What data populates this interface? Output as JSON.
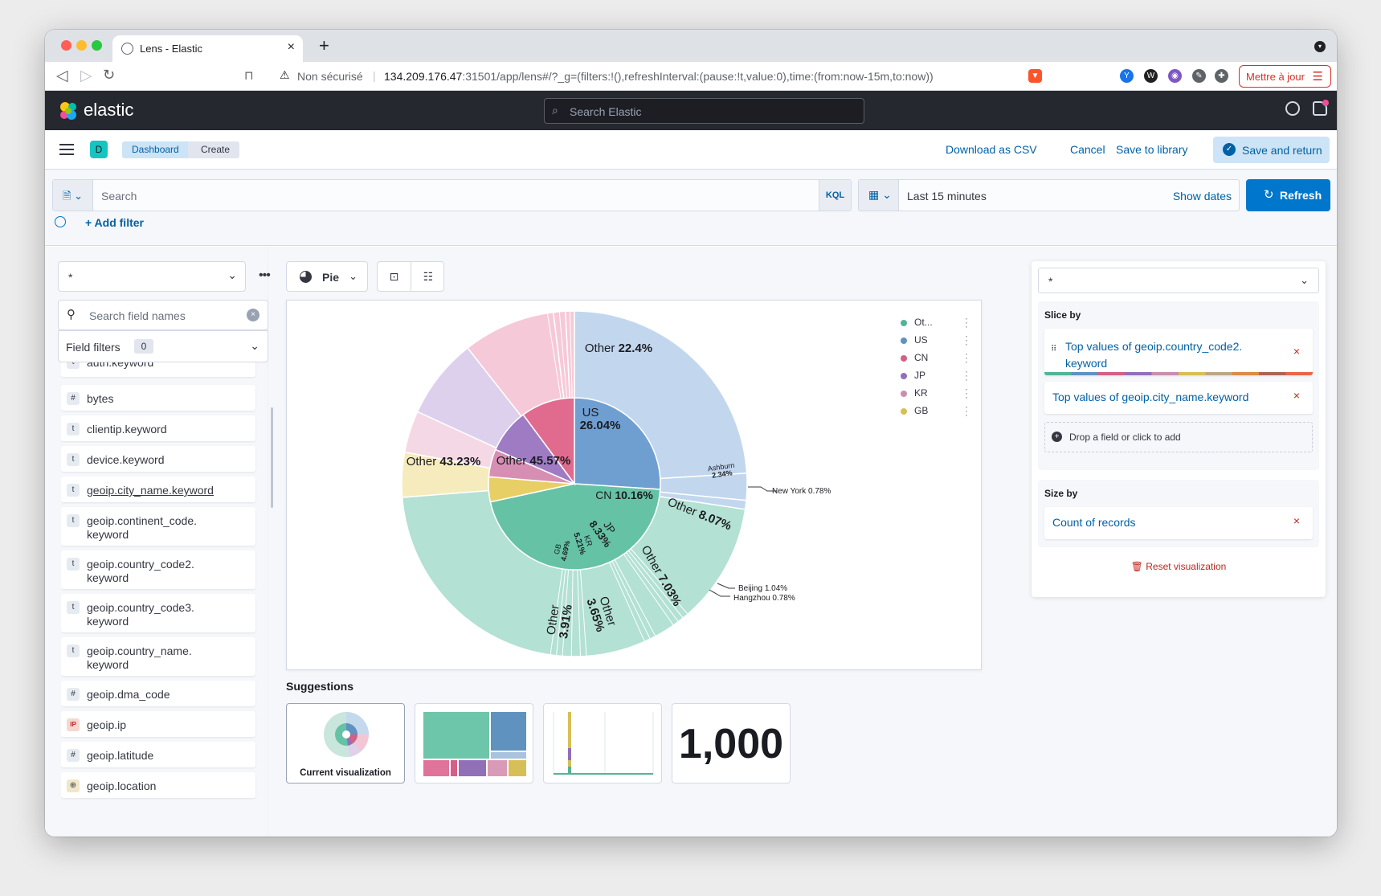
{
  "browser": {
    "tab_title": "Lens - Elastic",
    "not_secure": "Non sécurisé",
    "url_host": "134.209.176.47",
    "url_rest": ":31501/app/lens#/?_g=(filters:!(),refreshInterval:(pause:!t,value:0),time:(from:now-15m,to:now))",
    "update_button": "Mettre à jour"
  },
  "header": {
    "brand": "elastic",
    "search_placeholder": "Search Elastic"
  },
  "breadcrumbs": {
    "space": "D",
    "items": [
      "Dashboard",
      "Create"
    ]
  },
  "actions": {
    "download_csv": "Download as CSV",
    "cancel": "Cancel",
    "save_library": "Save to library",
    "save_return": "Save and return"
  },
  "query": {
    "placeholder": "Search",
    "language": "KQL",
    "time_range": "Last 15 minutes",
    "show_dates": "Show dates",
    "refresh": "Refresh",
    "add_filter": "+ Add filter"
  },
  "datasource": {
    "index_pattern": "*",
    "search_placeholder": "Search field names",
    "field_filters_label": "Field filters",
    "field_filters_count": "0",
    "fields": [
      {
        "type": "t",
        "name": "auth.keyword"
      },
      {
        "type": "#",
        "name": "bytes"
      },
      {
        "type": "t",
        "name": "clientip.keyword"
      },
      {
        "type": "t",
        "name": "device.keyword"
      },
      {
        "type": "t",
        "name": "geoip.city_name.keyword"
      },
      {
        "type": "t",
        "name": "geoip.continent_code.\nkeyword"
      },
      {
        "type": "t",
        "name": "geoip.country_code2.\nkeyword"
      },
      {
        "type": "t",
        "name": "geoip.country_code3.\nkeyword"
      },
      {
        "type": "t",
        "name": "geoip.country_name.\nkeyword"
      },
      {
        "type": "#",
        "name": "geoip.dma_code"
      },
      {
        "type": "IP",
        "name": "geoip.ip"
      },
      {
        "type": "#",
        "name": "geoip.latitude"
      },
      {
        "type": "⊕",
        "name": "geoip.location"
      }
    ]
  },
  "workspace": {
    "chart_type_label": "Pie",
    "suggestions_title": "Suggestions",
    "suggestion_current": "Current visualization",
    "suggestion_metric": "1,000",
    "legend": [
      {
        "label": "Ot...",
        "color": "#54b399"
      },
      {
        "label": "US",
        "color": "#6092c0"
      },
      {
        "label": "CN",
        "color": "#d36086"
      },
      {
        "label": "JP",
        "color": "#9170b8"
      },
      {
        "label": "KR",
        "color": "#ca8eae"
      },
      {
        "label": "GB",
        "color": "#d6bf57"
      }
    ],
    "inner_labels": [
      {
        "name": "US",
        "pct": "26.04%"
      },
      {
        "name": "Other",
        "pct": "45.57%"
      },
      {
        "name": "CN",
        "pct": "10.16%"
      },
      {
        "name": "JP",
        "pct": "8.33%"
      },
      {
        "name": "KR",
        "pct": "5.21%"
      },
      {
        "name": "GB",
        "pct": "4.69%"
      }
    ],
    "outer_labels": [
      {
        "name": "Other",
        "pct": "22.4%"
      },
      {
        "name": "Other",
        "pct": "43.23%"
      },
      {
        "name": "Other",
        "pct": "8.07%"
      },
      {
        "name": "Other",
        "pct": "7.03%"
      },
      {
        "name": "Other",
        "pct": "3.65%"
      },
      {
        "name": "Other",
        "pct": "3.91%"
      },
      {
        "name": "Ashburn",
        "pct": "2.34%"
      }
    ],
    "callouts": [
      {
        "name": "New York",
        "pct": "0.78%"
      },
      {
        "name": "Beijing",
        "pct": "1.04%"
      },
      {
        "name": "Hangzhou",
        "pct": "0.78%"
      }
    ]
  },
  "chart_data": {
    "type": "pie",
    "title": "",
    "inner_ring": {
      "categories": [
        "US",
        "Other",
        "GB",
        "KR",
        "JP",
        "CN"
      ],
      "values": [
        26.04,
        45.57,
        4.69,
        5.21,
        8.33,
        10.16
      ]
    },
    "outer_ring": {
      "categories": [
        "US / Other",
        "US / Ashburn",
        "US / New York",
        "Other / Other",
        "GB / Other",
        "KR / Other",
        "JP / Other",
        "CN / Other",
        "CN / Beijing",
        "CN / Hangzhou"
      ],
      "values": [
        22.4,
        2.34,
        0.78,
        43.23,
        3.91,
        3.65,
        7.03,
        8.07,
        1.04,
        0.78
      ]
    },
    "legend_position": "top-right"
  },
  "config": {
    "layer_index": "*",
    "slice_by_title": "Slice by",
    "slice_dim1": "Top values of geoip.country_code2.\nkeyword",
    "slice_dim2": "Top values of geoip.city_name.keyword",
    "drop_hint": "Drop a field or click to add",
    "size_by_title": "Size by",
    "size_dim": "Count of records",
    "reset": "Reset visualization"
  }
}
